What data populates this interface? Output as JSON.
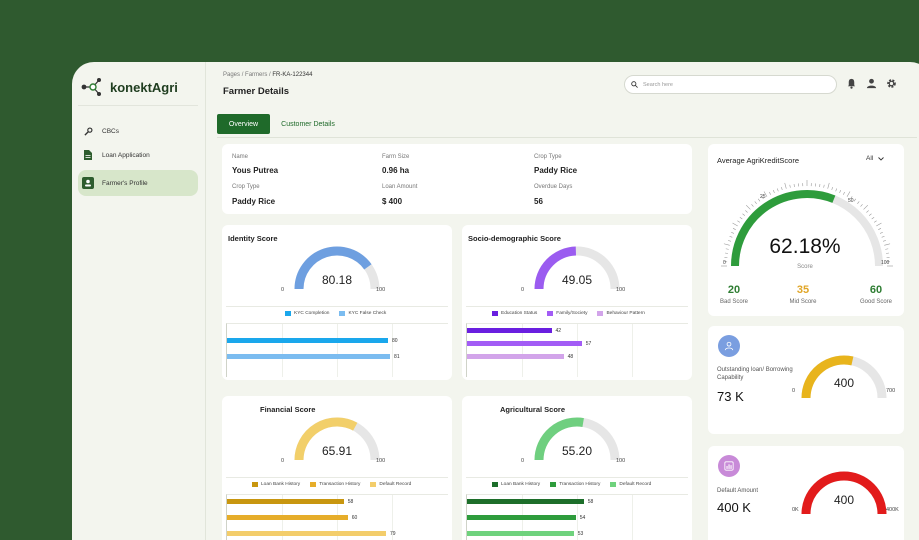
{
  "app": {
    "name": "konektAgri"
  },
  "sidebar": {
    "items": [
      {
        "label": "CBCs",
        "icon": "wrench-icon"
      },
      {
        "label": "Loan Application",
        "icon": "document-icon"
      },
      {
        "label": "Farmer's Profile",
        "icon": "profile-card-icon",
        "active": true
      }
    ]
  },
  "breadcrumb": {
    "pages": "Pages",
    "sep1": "/",
    "farmers": "Farmers",
    "sep2": "/",
    "current": "FR-KA-122344"
  },
  "page_title": "Farmer Details",
  "search": {
    "placeholder": "Search here"
  },
  "header_icons": [
    "bell-icon",
    "user-icon",
    "gear-icon"
  ],
  "tabs": [
    {
      "label": "Overview",
      "active": true
    },
    {
      "label": "Customer Details",
      "active": false
    }
  ],
  "farmer_info": {
    "name_label": "Name",
    "name": "Yous Putrea",
    "farm_size_label": "Farm Size",
    "farm_size": "0.96 ha",
    "crop_type_label_1": "Crop Type",
    "crop_type_1": "Paddy Rice",
    "crop_type_label_2": "Crop Type",
    "crop_type_2": "Paddy Rice",
    "loan_amount_label": "Loan Amount",
    "loan_amount": "$ 400",
    "overdue_days_label": "Overdue Days",
    "overdue_days": "56"
  },
  "scores": [
    {
      "title": "Identity Score",
      "value": "80.18",
      "fraction": 0.8018,
      "min": "0",
      "max": "100",
      "color": "#6e9fe0",
      "legend": [
        {
          "label": "KYC Completion",
          "color": "#1aa7ec"
        },
        {
          "label": "KYC False Check",
          "color": "#7bbcf0"
        }
      ],
      "bars": [
        {
          "value": 80,
          "label": "80",
          "color": "#1aa7ec"
        },
        {
          "value": 81,
          "label": "81",
          "color": "#7bbcf0"
        }
      ]
    },
    {
      "title": "Socio-demographic Score",
      "value": "49.05",
      "fraction": 0.4905,
      "min": "0",
      "max": "100",
      "color": "#9b5cf0",
      "legend": [
        {
          "label": "Education Status",
          "color": "#6a1fe0"
        },
        {
          "label": "Family/Society",
          "color": "#a25cf5"
        },
        {
          "label": "Behaviour Pattern",
          "color": "#d2a4ea"
        }
      ],
      "bars": [
        {
          "value": 42,
          "label": "42",
          "color": "#6a1fe0"
        },
        {
          "value": 57,
          "label": "57",
          "color": "#a25cf5"
        },
        {
          "value": 48,
          "label": "48",
          "color": "#d2a4ea"
        }
      ]
    },
    {
      "title": "Financial Score",
      "value": "65.91",
      "fraction": 0.6591,
      "min": "0",
      "max": "100",
      "color": "#f2cf6a",
      "legend": [
        {
          "label": "Loan Bank History",
          "color": "#c8960f"
        },
        {
          "label": "Transaction History",
          "color": "#e6ad2a"
        },
        {
          "label": "Default Record",
          "color": "#f3cd6b"
        }
      ],
      "bars": [
        {
          "value": 58,
          "label": "58",
          "color": "#c8960f"
        },
        {
          "value": 60,
          "label": "60",
          "color": "#e6ad2a"
        },
        {
          "value": 79,
          "label": "79",
          "color": "#f3cd6b"
        }
      ]
    },
    {
      "title": "Agricultural Score",
      "value": "55.20",
      "fraction": 0.552,
      "min": "0",
      "max": "100",
      "color": "#6fcf7f",
      "legend": [
        {
          "label": "Loan Bank History",
          "color": "#1d6e2a"
        },
        {
          "label": "Transaction History",
          "color": "#2e9c3c"
        },
        {
          "label": "Default Record",
          "color": "#6fd27d"
        }
      ],
      "bars": [
        {
          "value": 58,
          "label": "58",
          "color": "#1d6e2a"
        },
        {
          "value": 54,
          "label": "54",
          "color": "#2e9c3c"
        },
        {
          "value": 53,
          "label": "53",
          "color": "#6fd27d"
        }
      ]
    }
  ],
  "avg_score": {
    "title": "Average AgriKreditScore",
    "filter": "All",
    "value": "62.18%",
    "fraction": 0.6218,
    "sub": "Score",
    "color": "#2e9c3c",
    "ticks": [
      "0",
      "25",
      "50",
      "100"
    ],
    "bad": {
      "value": "20",
      "label": "Bad Score",
      "color": "#2e7d32"
    },
    "mid": {
      "value": "35",
      "label": "Mid Score",
      "color": "#e0a526"
    },
    "good": {
      "value": "60",
      "label": "Good Score",
      "color": "#2e7d32"
    }
  },
  "outstanding": {
    "label": "Outstanding loan/ Borrowing Capability",
    "value": "73 K",
    "gauge_value": "400",
    "fraction": 0.571,
    "min": "0",
    "max": "700",
    "color": "#e8b41c",
    "icon": "person-icon"
  },
  "default_amount": {
    "label": "Default Amount",
    "value": "400 K",
    "gauge_value": "400",
    "fraction": 1.0,
    "min": "0K",
    "max": "400K",
    "color": "#e21b1b",
    "icon": "bar-chart-icon"
  }
}
